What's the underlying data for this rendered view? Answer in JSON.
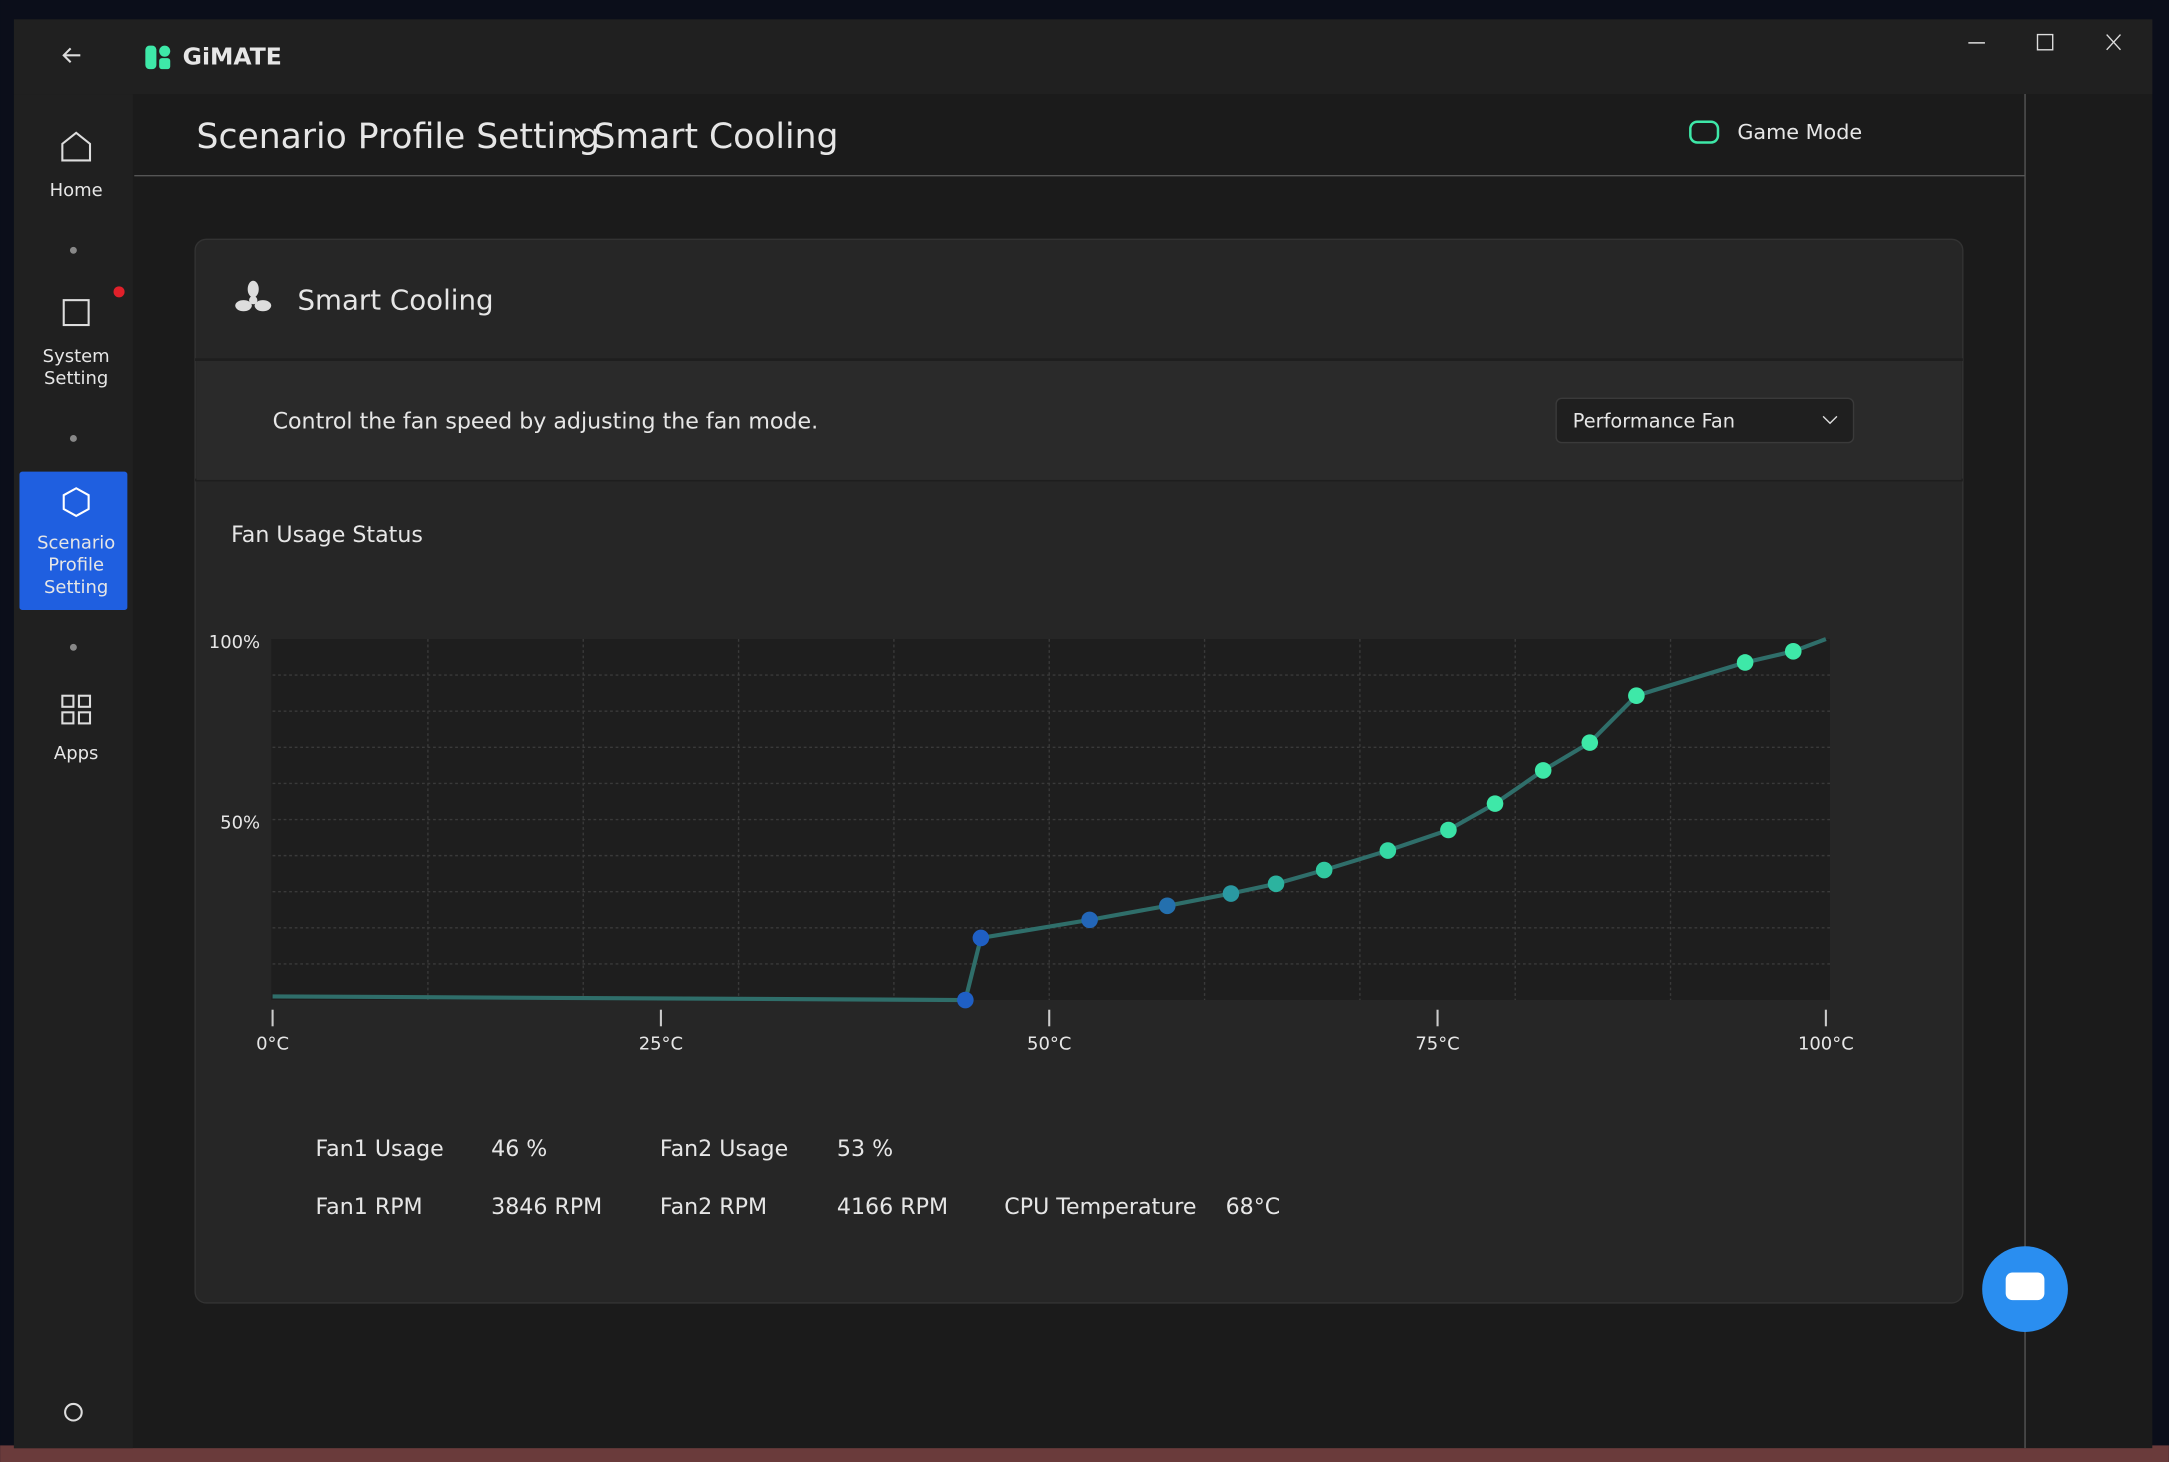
{
  "app": {
    "name": "GiMATE"
  },
  "nav": [
    {
      "lines": [
        "Home"
      ]
    },
    {
      "lines": [
        "System",
        "Setting"
      ]
    },
    {
      "lines": [
        "Scenario",
        "Profile",
        "Setting"
      ]
    },
    {
      "lines": [
        "Apps"
      ]
    }
  ],
  "breadcrumb": {
    "parent": "Scenario Profile Setting",
    "separator": "›",
    "current": "Smart Cooling"
  },
  "header_action": "Game Mode",
  "card": {
    "title": "Smart Cooling",
    "description": "Control the fan speed by adjusting the fan mode.",
    "fan_mode": "Performance Fan",
    "section_title": "Fan Usage Status"
  },
  "stats": [
    [
      {
        "label": "Fan1 Usage",
        "value": "46 %"
      },
      {
        "label": "Fan2 Usage",
        "value": "53 %"
      }
    ],
    [
      {
        "label": "Fan1 RPM",
        "value": "3846 RPM"
      },
      {
        "label": "Fan2 RPM",
        "value": "4166 RPM"
      },
      {
        "label": "CPU Temperature",
        "value": "68°C"
      }
    ]
  ],
  "chart_data": {
    "type": "line",
    "x": [
      0,
      44.6,
      45.6,
      52.6,
      57.6,
      61.7,
      64.6,
      67.7,
      71.8,
      75.7,
      78.7,
      81.8,
      84.8,
      87.8,
      94.8,
      97.9,
      100
    ],
    "values": [
      1,
      0,
      17.2,
      22.2,
      26.1,
      29.5,
      32.2,
      36.0,
      41.4,
      47.1,
      54.4,
      63.6,
      71.3,
      84.3,
      93.5,
      96.6,
      100
    ],
    "color": "#2f6e6a",
    "point_colors": [
      null,
      "#1f5fc4",
      "#1f5fc4",
      "#2366b8",
      "#2470ae",
      "#2a99a2",
      "#2cb39f",
      "#31c9a0",
      "#35d8a3",
      "#3ae2a6",
      "#3ee8a8",
      "#3ee8a8",
      "#3ee8a8",
      "#3ee8a8",
      "#3ee8a8",
      "#3ee8a8",
      null
    ],
    "xlim": [
      0,
      100
    ],
    "ylim": [
      0,
      100
    ],
    "xticks": [
      {
        "value": 0,
        "label": "0°C"
      },
      {
        "value": 25,
        "label": "25°C"
      },
      {
        "value": 50,
        "label": "50°C"
      },
      {
        "value": 75,
        "label": "75°C"
      },
      {
        "value": 100,
        "label": "100°C"
      }
    ],
    "yticks": [
      {
        "value": 50,
        "label": "50%"
      },
      {
        "value": 100,
        "label": "100%"
      }
    ],
    "xgrid": [
      10,
      20,
      30,
      40,
      50,
      60,
      70,
      80,
      90
    ],
    "ygrid": [
      10,
      20,
      30,
      40,
      50,
      60,
      70,
      80,
      90
    ],
    "grid": true
  }
}
